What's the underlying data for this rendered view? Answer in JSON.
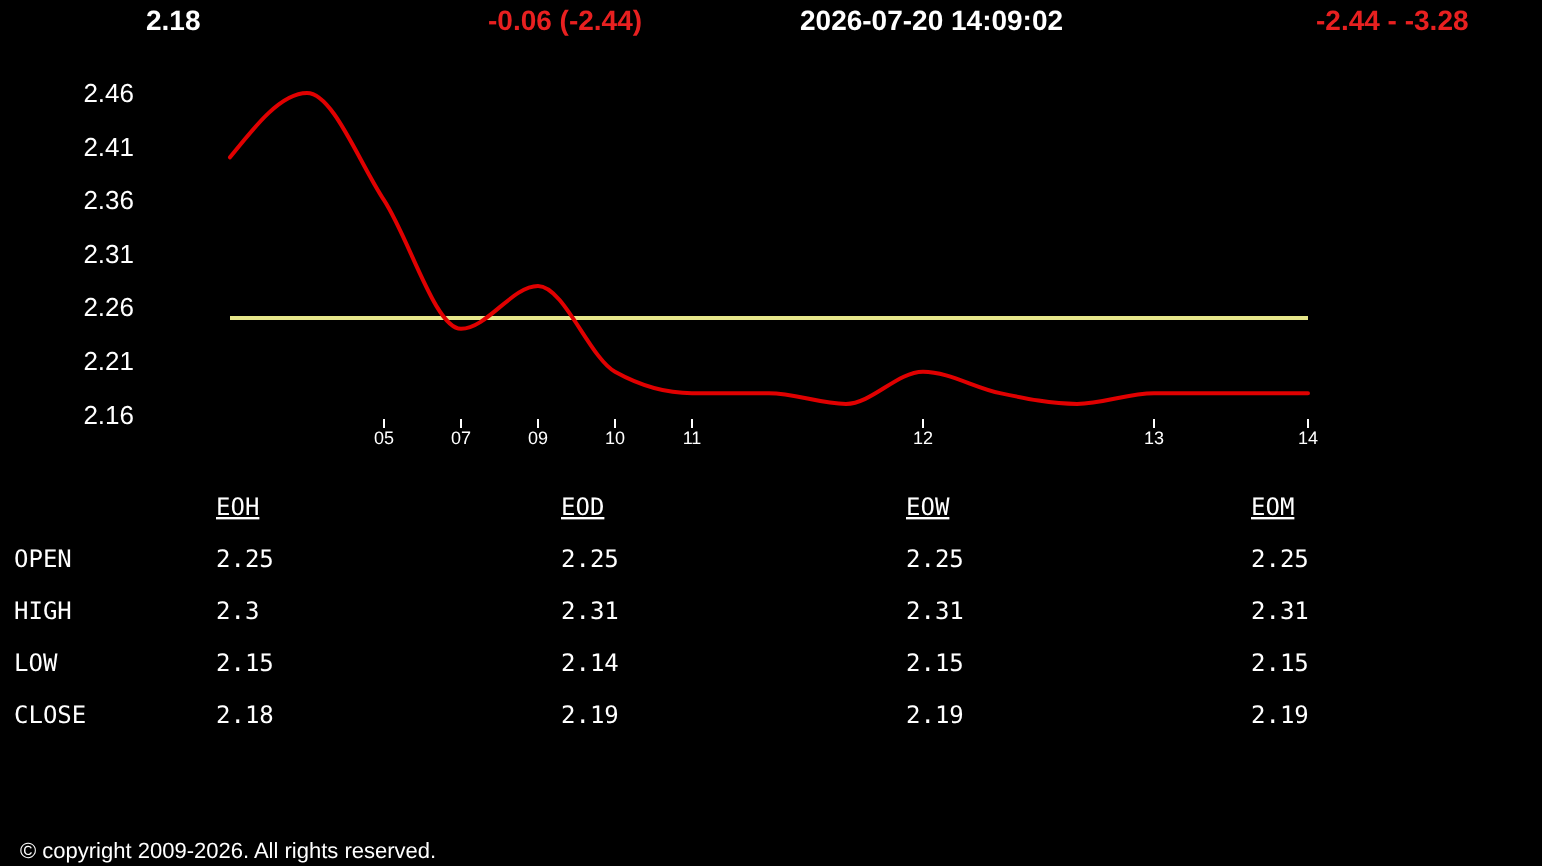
{
  "chart_data": [
    {
      "type": "line",
      "title": "2.18",
      "subtitle": "2026-07-20 14:09:02",
      "annotations": [
        "-0.06 (-2.44)",
        "-2.44 - -3.28",
        "© copyright 2009-2026. All rights reserved."
      ],
      "categories": [
        null,
        null,
        "05",
        "07",
        "09",
        "10",
        "11",
        null,
        null,
        "12",
        null,
        null,
        "13",
        null,
        "14"
      ],
      "series": [
        {
          "color": "#e00000",
          "values": [
            2.4,
            2.46,
            2.36,
            2.24,
            2.28,
            2.2,
            2.18,
            2.18,
            2.17,
            2.2,
            2.18,
            2.17,
            2.18,
            2.18,
            2.18
          ]
        }
      ],
      "ylim": [
        2.16,
        2.46
      ],
      "yticks": [
        2.16,
        2.21,
        2.26,
        2.31,
        2.36,
        2.41,
        2.46
      ],
      "ref_lines": [
        {
          "axis": "y",
          "value": 2.25,
          "color": "#e6e68a"
        }
      ]
    },
    {
      "type": "other",
      "categories": [
        "OPEN",
        "HIGH",
        "LOW",
        "CLOSE"
      ],
      "series": [
        {
          "name": "EOH",
          "values": [
            2.25,
            2.3,
            2.15,
            2.18
          ]
        },
        {
          "name": "EOD",
          "values": [
            2.25,
            2.31,
            2.14,
            2.19
          ]
        },
        {
          "name": "EOW",
          "values": [
            2.25,
            2.31,
            2.15,
            2.19
          ]
        },
        {
          "name": "EOM",
          "values": [
            2.25,
            2.31,
            2.15,
            2.19
          ]
        }
      ],
      "data_labels": true
    }
  ]
}
